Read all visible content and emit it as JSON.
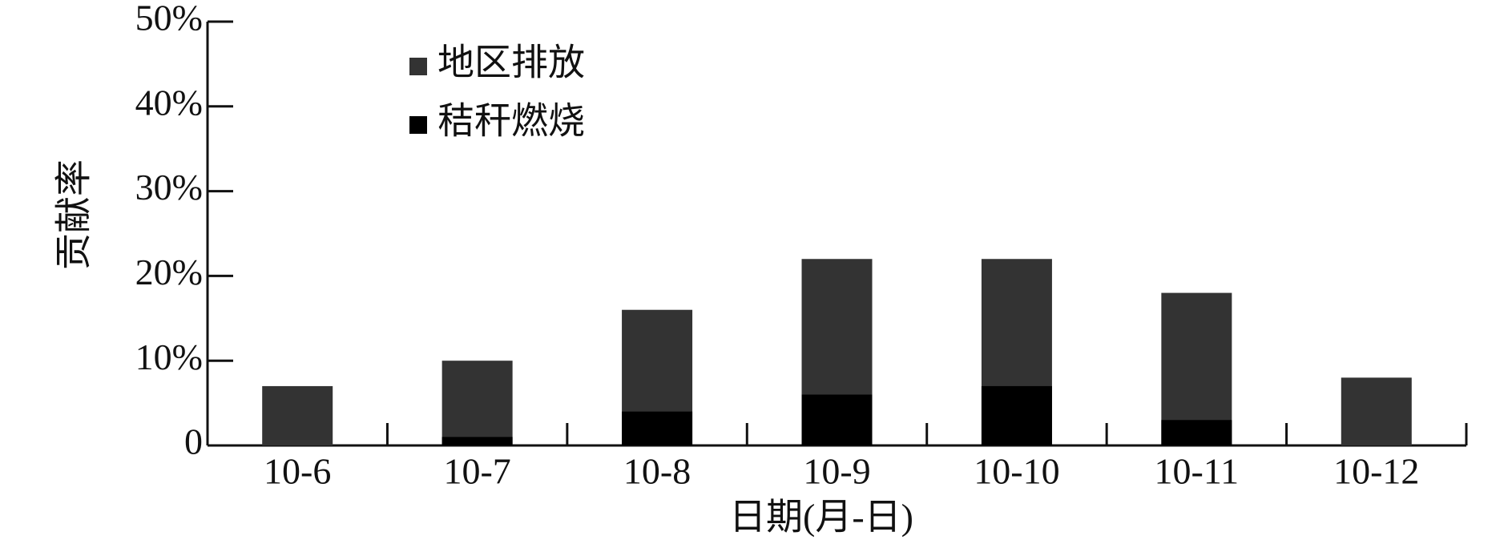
{
  "chart_data": {
    "type": "bar",
    "x_label": "日期(月-日)",
    "y_label": "贡献率",
    "categories": [
      "10-6",
      "10-7",
      "10-8",
      "10-9",
      "10-10",
      "10-11",
      "10-12"
    ],
    "series": [
      {
        "name": "地区排放",
        "color": "#333333",
        "values": [
          7,
          10,
          16,
          22,
          22,
          18,
          8
        ]
      },
      {
        "name": "秸秆燃烧",
        "color": "#000000",
        "values": [
          0,
          1,
          4,
          6,
          7,
          3,
          0
        ]
      }
    ],
    "ylim": [
      0,
      50
    ],
    "yticks": [
      0,
      {
        "value": 10,
        "label": "10%"
      },
      {
        "value": 20,
        "label": "20%"
      },
      {
        "value": 30,
        "label": "30%"
      },
      {
        "value": 40,
        "label": "40%"
      },
      {
        "value": 50,
        "label": "50%"
      }
    ],
    "legend": "upper-left"
  }
}
